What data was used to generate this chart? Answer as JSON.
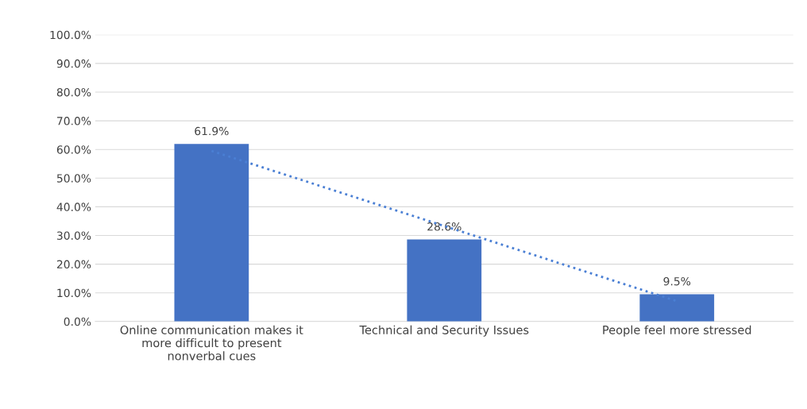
{
  "chart_data": {
    "type": "bar",
    "categories": [
      "Online communication makes it\nmore difficult to present\nnonverbal cues",
      "Technical and Security Issues",
      "People feel more stressed"
    ],
    "series": [
      {
        "color": "#4472c4",
        "values": [
          61.9,
          28.6,
          9.5
        ],
        "value_labels": [
          "61.9%",
          "28.6%",
          "9.5%"
        ]
      },
      {
        "type": "line",
        "color": "#4a7fd4",
        "values": [
          59.5,
          33.3,
          7.1
        ],
        "line_style": "dotted"
      }
    ],
    "ylim": [
      0,
      100
    ],
    "yticks": [
      {
        "value": 0,
        "label": "0.0%"
      },
      {
        "value": 10,
        "label": "10.0%"
      },
      {
        "value": 20,
        "label": "20.0%"
      },
      {
        "value": 30,
        "label": "30.0%"
      },
      {
        "value": 40,
        "label": "40.0%"
      },
      {
        "value": 50,
        "label": "50.0%"
      },
      {
        "value": 60,
        "label": "60.0%"
      },
      {
        "value": 70,
        "label": "70.0%"
      },
      {
        "value": 80,
        "label": "80.0%"
      },
      {
        "value": 90,
        "label": "90.0%"
      },
      {
        "value": 100,
        "label": "100.0%"
      }
    ],
    "grid": "y",
    "legend": false
  }
}
